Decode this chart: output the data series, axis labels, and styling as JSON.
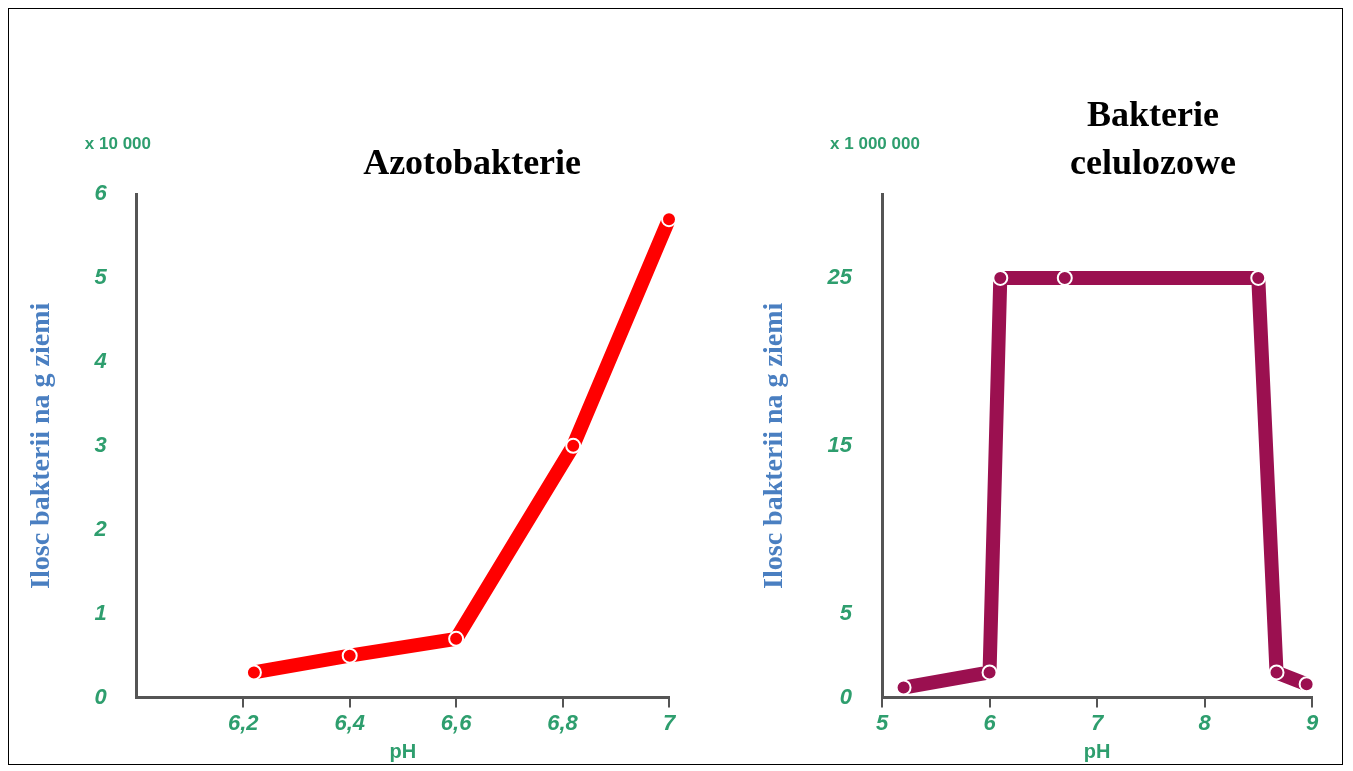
{
  "chart_data": [
    {
      "type": "line",
      "title": "Azotobakterie",
      "xlabel": "pH",
      "ylabel": "Ilosc bakterii na g ziemi",
      "annotations": [
        "x 10 000"
      ],
      "x": [
        6.22,
        6.4,
        6.6,
        6.82,
        7.0
      ],
      "series": [
        {
          "color": "#ff0000",
          "values": [
            0.3,
            0.5,
            0.7,
            3.0,
            5.7
          ]
        }
      ],
      "xlim": [
        6.0,
        7.0
      ],
      "xticks": [
        {
          "value": 6.2,
          "label": "6,2"
        },
        {
          "value": 6.4,
          "label": "6,4"
        },
        {
          "value": 6.6,
          "label": "6,6"
        },
        {
          "value": 6.8,
          "label": "6,8"
        },
        7
      ],
      "ylim": [
        0,
        6
      ],
      "yticks": [
        0,
        1,
        2,
        3,
        4,
        5,
        6
      ],
      "marker": "circle",
      "grid": false,
      "legend": false
    },
    {
      "type": "line",
      "title": "Bakterie celulozowe",
      "xlabel": "pH",
      "ylabel": "Ilosc bakterii na g ziemi",
      "annotations": [
        "x 1 000 000"
      ],
      "x": [
        5.2,
        6.0,
        6.1,
        6.7,
        8.5,
        8.67,
        8.95
      ],
      "series": [
        {
          "color": "#9b1050",
          "values": [
            0.6,
            1.5,
            25,
            25,
            25,
            1.5,
            0.8
          ]
        }
      ],
      "xlim": [
        5,
        9
      ],
      "xticks": [
        5,
        6,
        7,
        8,
        9
      ],
      "ylim": [
        0,
        30
      ],
      "yticks": [
        0,
        5,
        15,
        25
      ],
      "marker": "circle",
      "grid": false,
      "legend": false
    }
  ]
}
